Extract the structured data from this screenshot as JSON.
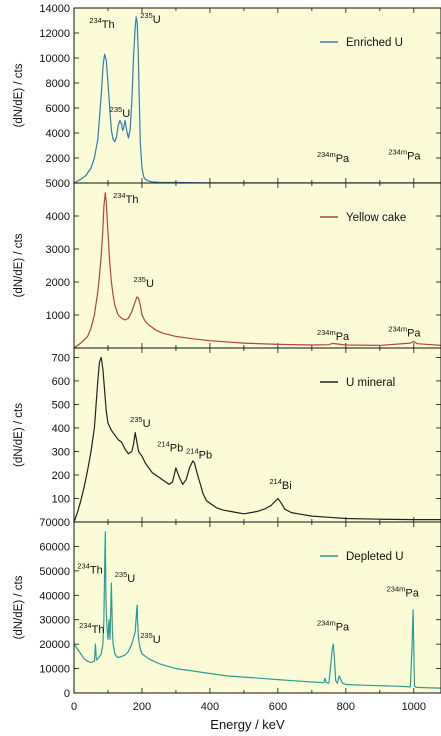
{
  "chart_data": [
    {
      "type": "line",
      "series": [
        {
          "name": "Enriched U",
          "color": "#2b7fb2",
          "x": [
            0,
            20,
            35,
            50,
            60,
            70,
            80,
            86,
            90,
            95,
            100,
            105,
            110,
            115,
            120,
            125,
            130,
            135,
            140,
            143,
            146,
            150,
            155,
            160,
            165,
            170,
            175,
            180,
            183,
            186,
            189,
            192,
            195,
            200,
            205,
            210,
            220,
            230,
            250,
            300,
            400,
            500,
            600,
            700,
            800,
            900,
            1000,
            1080
          ],
          "y": [
            0,
            300,
            600,
            1200,
            2000,
            3500,
            7000,
            9500,
            10300,
            9800,
            8000,
            6000,
            4200,
            3500,
            3300,
            3700,
            4600,
            5000,
            4700,
            4200,
            4400,
            5000,
            4200,
            3600,
            4200,
            6500,
            10000,
            12500,
            13300,
            12800,
            10500,
            7000,
            3200,
            1200,
            500,
            300,
            150,
            100,
            60,
            40,
            20,
            15,
            10,
            10,
            10,
            10,
            10,
            10
          ]
        }
      ],
      "ylim": [
        0,
        14000
      ],
      "yticks": [
        2000,
        4000,
        6000,
        8000,
        10000,
        12000,
        14000
      ],
      "ylabel": "(dN/dE) / cts",
      "legend": "top-right",
      "annotations": [
        {
          "sup": "234",
          "text": "Th",
          "x": 45,
          "y": 12400
        },
        {
          "sup": "235",
          "text": "U",
          "x": 195,
          "y": 12800
        },
        {
          "sup": "235",
          "text": "U",
          "x": 105,
          "y": 5300
        },
        {
          "sup": "234m",
          "text": "Pa",
          "x": 715,
          "y": 1700
        },
        {
          "sup": "234m",
          "text": "Pa",
          "x": 925,
          "y": 1900
        }
      ]
    },
    {
      "type": "line",
      "series": [
        {
          "name": "Yellow cake",
          "color": "#b4453a",
          "x": [
            0,
            20,
            40,
            50,
            60,
            70,
            75,
            80,
            85,
            88,
            92,
            95,
            100,
            105,
            110,
            115,
            120,
            130,
            140,
            150,
            160,
            170,
            180,
            185,
            190,
            195,
            200,
            210,
            220,
            240,
            260,
            300,
            350,
            400,
            500,
            600,
            700,
            750,
            760,
            800,
            900,
            990,
            1000,
            1010,
            1080
          ],
          "y": [
            0,
            150,
            350,
            600,
            1000,
            1700,
            2200,
            2800,
            3600,
            4300,
            4700,
            4400,
            3500,
            2600,
            2000,
            1600,
            1300,
            1000,
            900,
            850,
            900,
            1100,
            1400,
            1550,
            1500,
            1300,
            1000,
            800,
            700,
            550,
            450,
            350,
            280,
            220,
            150,
            110,
            90,
            100,
            140,
            90,
            80,
            150,
            200,
            130,
            80
          ]
        }
      ],
      "ylim": [
        0,
        5000
      ],
      "yticks": [
        1000,
        2000,
        3000,
        4000,
        5000
      ],
      "ylabel": "(dN/dE) / cts",
      "legend": "top-right",
      "annotations": [
        {
          "sup": "234",
          "text": "Th",
          "x": 115,
          "y": 4400
        },
        {
          "sup": "235",
          "text": "U",
          "x": 175,
          "y": 1850
        },
        {
          "sup": "234m",
          "text": "Pa",
          "x": 715,
          "y": 250
        },
        {
          "sup": "234m",
          "text": "Pa",
          "x": 925,
          "y": 350
        }
      ]
    },
    {
      "type": "line",
      "series": [
        {
          "name": "U mineral",
          "color": "#222222",
          "x": [
            0,
            10,
            20,
            30,
            40,
            50,
            60,
            65,
            70,
            75,
            80,
            85,
            90,
            95,
            100,
            110,
            120,
            130,
            140,
            150,
            160,
            170,
            175,
            180,
            185,
            190,
            200,
            210,
            220,
            230,
            240,
            250,
            260,
            270,
            280,
            290,
            295,
            300,
            310,
            320,
            330,
            340,
            350,
            355,
            360,
            370,
            380,
            390,
            400,
            420,
            440,
            460,
            480,
            500,
            520,
            540,
            560,
            580,
            590,
            600,
            610,
            620,
            640,
            660,
            700,
            750,
            800,
            900,
            1000,
            1080
          ],
          "y": [
            0,
            40,
            90,
            150,
            220,
            300,
            400,
            500,
            600,
            680,
            700,
            650,
            560,
            470,
            420,
            390,
            370,
            350,
            340,
            310,
            290,
            300,
            330,
            380,
            340,
            300,
            280,
            250,
            230,
            210,
            200,
            190,
            180,
            170,
            160,
            170,
            200,
            230,
            190,
            160,
            180,
            230,
            260,
            250,
            220,
            170,
            120,
            90,
            80,
            60,
            50,
            45,
            40,
            35,
            40,
            45,
            55,
            70,
            85,
            100,
            80,
            55,
            40,
            35,
            25,
            20,
            15,
            12,
            10,
            10
          ]
        }
      ],
      "ylim": [
        0,
        740
      ],
      "yticks": [
        100,
        200,
        300,
        400,
        500,
        600,
        700
      ],
      "ylabel": "(dN/dE) / cts",
      "legend": "top-right",
      "annotations": [
        {
          "sup": "235",
          "text": "U",
          "x": 165,
          "y": 405
        },
        {
          "sup": "214",
          "text": "Pb",
          "x": 245,
          "y": 300
        },
        {
          "sup": "214",
          "text": "Pb",
          "x": 330,
          "y": 270
        },
        {
          "sup": "214",
          "text": "Bi",
          "x": 575,
          "y": 140
        }
      ]
    },
    {
      "type": "line",
      "series": [
        {
          "name": "Depleted U",
          "color": "#2a9c97",
          "x": [
            0,
            10,
            20,
            30,
            40,
            50,
            60,
            63,
            66,
            70,
            75,
            80,
            85,
            88,
            90,
            92,
            94,
            96,
            98,
            100,
            103,
            106,
            110,
            113,
            115,
            118,
            120,
            125,
            130,
            140,
            150,
            160,
            170,
            180,
            185,
            186,
            187,
            190,
            195,
            200,
            220,
            250,
            300,
            350,
            400,
            450,
            500,
            550,
            600,
            650,
            700,
            735,
            738,
            742,
            750,
            760,
            763,
            766,
            770,
            775,
            780,
            790,
            800,
            850,
            900,
            950,
            990,
            995,
            998,
            1000,
            1002,
            1005,
            1010,
            1050,
            1080
          ],
          "y": [
            20000,
            18000,
            16000,
            14000,
            13000,
            12500,
            13000,
            20000,
            13500,
            14000,
            15000,
            16000,
            20000,
            30000,
            50000,
            66000,
            40000,
            30000,
            25000,
            22000,
            30000,
            22000,
            45000,
            25000,
            20000,
            18000,
            16000,
            15000,
            14500,
            15000,
            15500,
            17000,
            20000,
            25000,
            35000,
            36000,
            30000,
            22000,
            18000,
            16000,
            14000,
            12000,
            10000,
            9000,
            8000,
            7000,
            6500,
            6000,
            5500,
            5000,
            4500,
            4200,
            6000,
            4300,
            4000,
            18000,
            20000,
            15000,
            5000,
            4000,
            7000,
            4000,
            3500,
            3200,
            3000,
            2800,
            2500,
            20000,
            34000,
            18000,
            3000,
            2500,
            2300,
            2100,
            2000
          ]
        }
      ],
      "ylim": [
        0,
        70000
      ],
      "yticks": [
        0,
        10000,
        20000,
        30000,
        40000,
        50000,
        60000,
        70000
      ],
      "xlim": [
        0,
        1080
      ],
      "xticks": [
        0,
        200,
        400,
        600,
        800,
        1000
      ],
      "xlabel": "Energy / keV",
      "ylabel": "(dN/dE) / cts",
      "legend": "top-right",
      "annotations": [
        {
          "sup": "234",
          "text": "Th",
          "x": 10,
          "y": 49000
        },
        {
          "sup": "235",
          "text": "U",
          "x": 120,
          "y": 45500
        },
        {
          "sup": "234",
          "text": "Th",
          "x": 15,
          "y": 24500
        },
        {
          "sup": "235",
          "text": "U",
          "x": 195,
          "y": 20500
        },
        {
          "sup": "234m",
          "text": "Pa",
          "x": 715,
          "y": 25500
        },
        {
          "sup": "234m",
          "text": "Pa",
          "x": 920,
          "y": 39500
        }
      ]
    }
  ]
}
